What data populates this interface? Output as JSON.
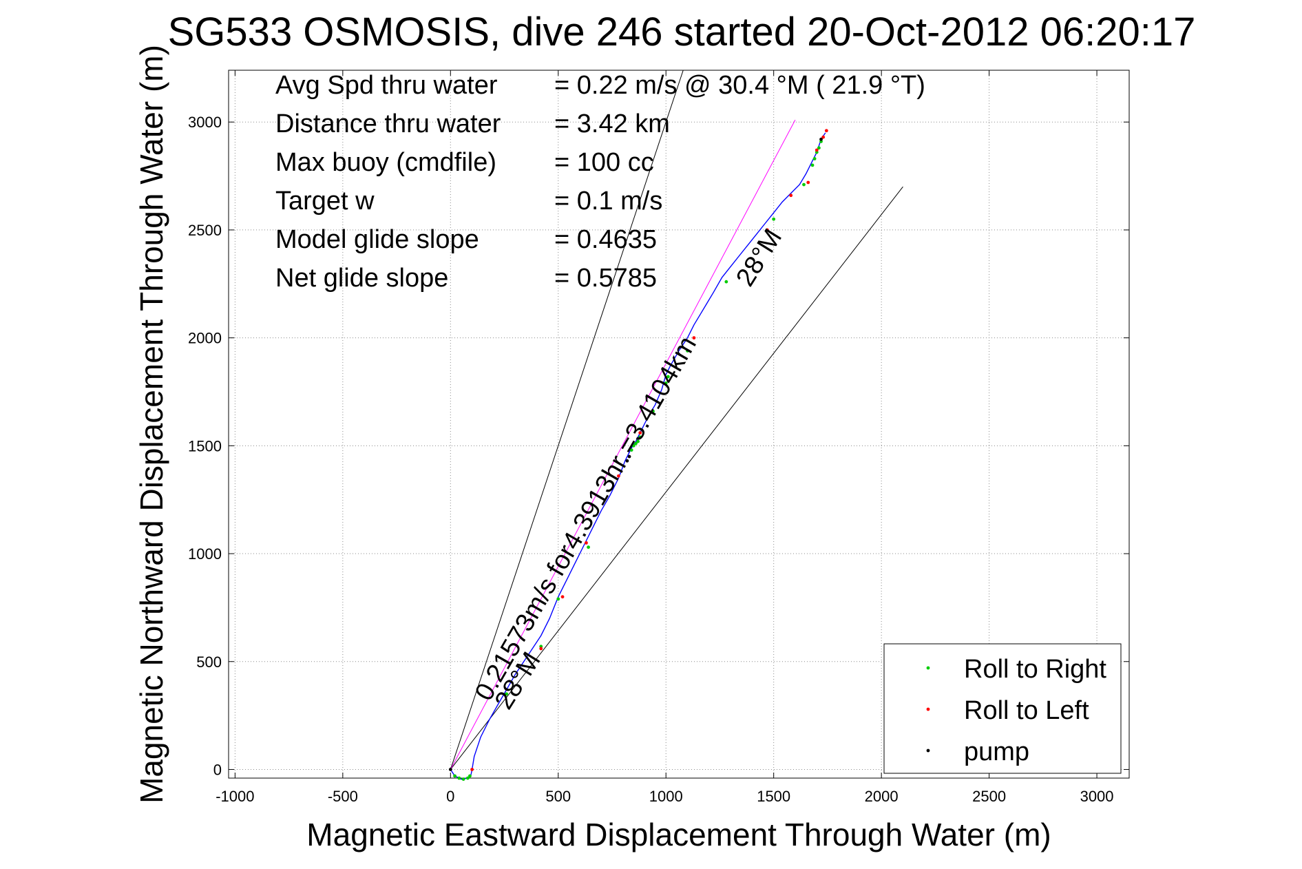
{
  "chart_data": {
    "type": "line",
    "title": "SG533 OSMOSIS, dive 246 started 20-Oct-2012 06:20:17",
    "xlabel": "Magnetic Eastward Displacement Through Water (m)",
    "ylabel": "Magnetic Northward Displacement Through Water (m)",
    "xlim": [
      -1030,
      3150
    ],
    "ylim": [
      -40,
      3240
    ],
    "xticks": [
      -1000,
      -500,
      0,
      500,
      1000,
      1500,
      2000,
      2500,
      3000
    ],
    "yticks": [
      0,
      500,
      1000,
      1500,
      2000,
      2500,
      3000
    ],
    "grid": true,
    "legend_position": "bottom-right",
    "stats": [
      {
        "label": "Avg Spd thru water",
        "value": "=  0.22 m/s @  30.4 °M ( 21.9 °T)"
      },
      {
        "label": "Distance thru water",
        "value": "=  3.42 km"
      },
      {
        "label": "Max buoy (cmdfile)",
        "value": "= 100 cc"
      },
      {
        "label": "Target w",
        "value": "= 0.1 m/s"
      },
      {
        "label": "Model glide slope",
        "value": "= 0.4635"
      },
      {
        "label": "Net glide slope",
        "value": "= 0.5785"
      }
    ],
    "annotations": [
      {
        "text": "0.21573m/s for4.3913hr =3.4104km",
        "x": 180,
        "y": 310,
        "angle": 60
      },
      {
        "text": "28°M",
        "x": 270,
        "y": 270,
        "angle": 58
      },
      {
        "text": "28°M",
        "x": 1390,
        "y": 2230,
        "angle": 58
      }
    ],
    "bearing_lines": [
      {
        "name": "bearing-left",
        "x": [
          0,
          1080
        ],
        "y": [
          0,
          3240
        ],
        "color": "#000000"
      },
      {
        "name": "bearing-right",
        "x": [
          0,
          2100
        ],
        "y": [
          0,
          2700
        ],
        "color": "#000000"
      },
      {
        "name": "heading-line",
        "x": [
          0,
          1600
        ],
        "y": [
          0,
          3010
        ],
        "color": "#ff00ff"
      }
    ],
    "series": [
      {
        "name": "track",
        "color": "#0000ff",
        "x": [
          0,
          20,
          50,
          80,
          95,
          100,
          110,
          140,
          180,
          220,
          260,
          300,
          340,
          380,
          420,
          460,
          500,
          540,
          580,
          620,
          660,
          700,
          740,
          780,
          810,
          840,
          860,
          880,
          900,
          920,
          950,
          980,
          1000,
          1020,
          1060,
          1100,
          1130,
          1160,
          1190,
          1220,
          1260,
          1300,
          1340,
          1380,
          1420,
          1460,
          1500,
          1540,
          1580,
          1620,
          1650,
          1680,
          1700,
          1710,
          1720,
          1740
        ],
        "y": [
          0,
          -30,
          -45,
          -40,
          -25,
          0,
          60,
          150,
          230,
          300,
          370,
          440,
          500,
          560,
          620,
          700,
          800,
          880,
          960,
          1040,
          1120,
          1200,
          1270,
          1350,
          1430,
          1490,
          1520,
          1560,
          1600,
          1640,
          1690,
          1760,
          1830,
          1870,
          1940,
          2000,
          2060,
          2110,
          2160,
          2210,
          2280,
          2330,
          2380,
          2430,
          2480,
          2530,
          2580,
          2630,
          2670,
          2710,
          2760,
          2820,
          2860,
          2890,
          2920,
          2950
        ]
      },
      {
        "name": "Roll to Right",
        "color": "#00cc00",
        "x": [
          20,
          40,
          60,
          80,
          90,
          260,
          420,
          500,
          640,
          840,
          850,
          860,
          870,
          880,
          940,
          1000,
          1010,
          1100,
          1280,
          1500,
          1640,
          1680,
          1690,
          1700,
          1710,
          1720
        ],
        "y": [
          -30,
          -40,
          -45,
          -40,
          -30,
          350,
          570,
          790,
          1030,
          1480,
          1500,
          1510,
          1520,
          1540,
          1660,
          1790,
          1820,
          1940,
          2260,
          2550,
          2710,
          2800,
          2830,
          2860,
          2880,
          2910
        ]
      },
      {
        "name": "Roll to Left",
        "color": "#ff0000",
        "x": [
          100,
          420,
          520,
          630,
          780,
          880,
          1130,
          1470,
          1580,
          1660,
          1700,
          1730,
          1745
        ],
        "y": [
          0,
          560,
          800,
          1050,
          1360,
          1560,
          2000,
          2500,
          2660,
          2720,
          2870,
          2930,
          2960
        ]
      },
      {
        "name": "pump",
        "color": "#000000",
        "x": [
          0,
          820,
          830,
          1720
        ],
        "y": [
          0,
          1430,
          1450,
          2920
        ]
      }
    ]
  }
}
